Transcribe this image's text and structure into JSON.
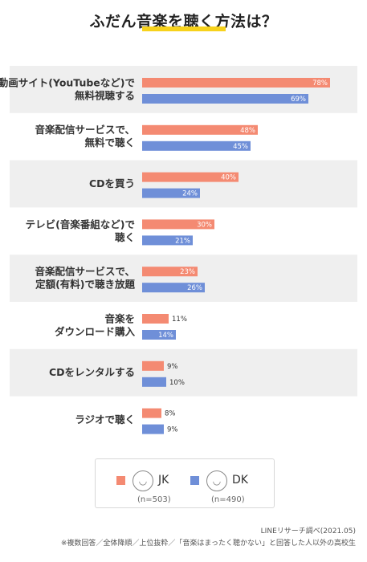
{
  "title": "ふだん音楽を聴く方法は？",
  "colors": {
    "jk": "#f48a72",
    "dk": "#6f8fd8",
    "row_alt": "#efefef",
    "title_bar": "#f7d21c"
  },
  "legend": {
    "jk": {
      "label": "JK",
      "n": "(n=503)",
      "avatar": "jk-avatar-icon"
    },
    "dk": {
      "label": "DK",
      "n": "(n=490)",
      "avatar": "dk-avatar-icon"
    }
  },
  "footer": {
    "source": "LINEリサーチ調べ(2021.05)",
    "note": "※複数回答／全体降順／上位抜粋／「音楽はまったく聴かない」と回答した人以外の高校生"
  },
  "chart_data": {
    "type": "bar",
    "orientation": "horizontal",
    "unit": "%",
    "categories": [
      [
        "動画サイト(YouTubeなど)で",
        "無料視聴する"
      ],
      [
        "音楽配信サービスで、",
        "無料で聴く"
      ],
      [
        "CDを買う"
      ],
      [
        "テレビ(音楽番組など)で",
        "聴く"
      ],
      [
        "音楽配信サービスで、",
        "定額(有料)で聴き放題"
      ],
      [
        "音楽を",
        "ダウンロード購入"
      ],
      [
        "CDをレンタルする"
      ],
      [
        "ラジオで聴く"
      ]
    ],
    "series": [
      {
        "name": "JK",
        "values": [
          78,
          48,
          40,
          30,
          23,
          11,
          9,
          8
        ]
      },
      {
        "name": "DK",
        "values": [
          69,
          45,
          24,
          21,
          26,
          14,
          10,
          9
        ]
      }
    ],
    "xlim": [
      0,
      100
    ]
  }
}
